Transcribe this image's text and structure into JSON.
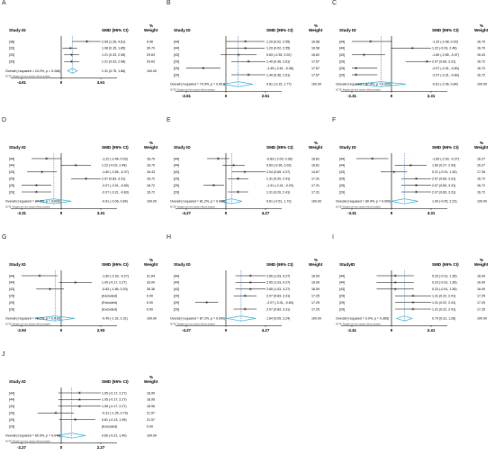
{
  "colors": {
    "diamond": "#3ab0d6",
    "line": "#000000",
    "dash": "#2f6fb0",
    "box": "#7a7a7a"
  },
  "common": {
    "study_header": "Study ID",
    "smd_header": "SMD (95% CI)",
    "weight_header": "Weight",
    "pct": "%",
    "note": "NOTE: Weights are from random effects analysis"
  },
  "chart_data": [
    {
      "type": "forest",
      "panel": "A",
      "study_header": "Study ID",
      "xlim": [
        -4.61,
        4.61
      ],
      "ticks": [
        "-4.61",
        "0",
        "4.61"
      ],
      "studies": [
        {
          "id": "[38]",
          "smd": 2.99,
          "lo": 1.26,
          "hi": 4.61,
          "ci": "2.99 (1.26, 4.61)",
          "weight": "9.96"
        },
        {
          "id": "[33]",
          "smd": 1.08,
          "lo": 0.15,
          "hi": 1.85,
          "ci": "1.08 (0.15, 1.85)",
          "weight": "30.70"
        },
        {
          "id": "[33]",
          "smd": 1.21,
          "lo": 0.33,
          "hi": 2.08,
          "ci": "1.21 (0.33, 2.08)",
          "weight": "29.63"
        },
        {
          "id": "[33]",
          "smd": 1.21,
          "lo": 0.33,
          "hi": 2.08,
          "ci": "1.21 (0.33, 2.08)",
          "weight": "29.63"
        }
      ],
      "overall": {
        "label": "Overall (I-squared = 24.2%, p = 0.266)",
        "smd": 1.31,
        "lo": 0.75,
        "hi": 1.88,
        "ci": "1.31 (0.75, 1.88)",
        "weight": "100.00"
      }
    },
    {
      "type": "forest",
      "panel": "B",
      "study_header": "Study ID",
      "xlim": [
        -2.61,
        2.61
      ],
      "ticks": [
        "-2.61",
        "0",
        "2.61"
      ],
      "studies": [
        {
          "id": "[44]",
          "smd": 1.29,
          "lo": 0.02,
          "hi": 2.55,
          "ci": "1.29 (0.02, 2.55)",
          "weight": "16.58"
        },
        {
          "id": "[44]",
          "smd": 1.29,
          "lo": 0.02,
          "hi": 2.55,
          "ci": "1.29 (0.02, 2.55)",
          "weight": "16.58"
        },
        {
          "id": "[43]",
          "smd": 0.83,
          "lo": -0.35,
          "hi": 2.02,
          "ci": "0.83 (-0.35, 2.02)",
          "weight": "16.62"
        },
        {
          "id": "[29]",
          "smd": 1.49,
          "lo": 0.36,
          "hi": 2.61,
          "ci": "1.49 (0.36, 2.61)",
          "weight": "17.57"
        },
        {
          "id": "[29]",
          "smd": -1.49,
          "lo": -2.61,
          "hi": -0.36,
          "ci": "-1.49 (-2.61, -0.36)",
          "weight": "17.57"
        },
        {
          "id": "[29]",
          "smd": 1.49,
          "lo": 0.36,
          "hi": 2.61,
          "ci": "1.49 (0.36, 2.61)",
          "weight": "17.57"
        }
      ],
      "overall": {
        "label": "Overall (I-squared = 74.9%, p = 0.001)",
        "smd": 0.81,
        "lo": -0.15,
        "hi": 1.77,
        "ci": "0.81 (-0.15, 1.77)",
        "weight": "100.00"
      }
    },
    {
      "type": "forest",
      "panel": "C",
      "study_header": "Study ID",
      "xlim": [
        -2.31,
        2.31
      ],
      "ticks": [
        "-2.31",
        "0",
        "2.31"
      ],
      "studies": [
        {
          "id": "[44]",
          "smd": -1.22,
          "lo": -2.48,
          "hi": 0.03,
          "ci": "-1.22 (-2.48, 0.03)",
          "weight": "16.70"
        },
        {
          "id": "[44]",
          "smd": 1.22,
          "lo": -0.03,
          "hi": 2.48,
          "ci": "1.22 (-0.03, 2.48)",
          "weight": "16.70"
        },
        {
          "id": "[43]",
          "smd": -1.6,
          "lo": -2.85,
          "hi": -0.37,
          "ci": "-1.60 (-2.85, -0.37)",
          "weight": "16.43"
        },
        {
          "id": "[29]",
          "smd": 2.07,
          "lo": 0.83,
          "hi": 3.31,
          "ci": "2.07 (0.83, 3.31)",
          "weight": "16.72"
        },
        {
          "id": "[29]",
          "smd": -2.07,
          "lo": -3.31,
          "hi": -0.83,
          "ci": "-2.07 (-3.31, -0.83)",
          "weight": "16.72"
        },
        {
          "id": "[29]",
          "smd": -2.07,
          "lo": -3.31,
          "hi": -0.83,
          "ci": "-2.07 (-3.31, -0.83)",
          "weight": "16.72"
        }
      ],
      "overall": {
        "label": "Overall (I-squared = 87.4%, p = 0.000)",
        "smd": -0.61,
        "lo": -2.06,
        "hi": 0.84,
        "ci": "-0.61 (-2.06, 0.84)",
        "weight": "100.00"
      }
    },
    {
      "type": "forest",
      "panel": "D",
      "study_header": "Study  ID",
      "xlim": [
        -3.31,
        3.31
      ],
      "ticks": [
        "-3.31",
        "0",
        "3.31"
      ],
      "studies": [
        {
          "id": "[44]",
          "smd": -1.22,
          "lo": -2.48,
          "hi": 0.03,
          "ci": "-1.22 (-2.48, 0.03)",
          "weight": "16.70"
        },
        {
          "id": "[44]",
          "smd": 1.22,
          "lo": -0.03,
          "hi": 2.48,
          "ci": "1.22 (-0.03, 2.48)",
          "weight": "16.70"
        },
        {
          "id": "[43]",
          "smd": -1.6,
          "lo": -2.85,
          "hi": -0.37,
          "ci": "-1.60 (-2.85, -0.37)",
          "weight": "16.43"
        },
        {
          "id": "[29]",
          "smd": 2.07,
          "lo": 0.83,
          "hi": 3.31,
          "ci": "2.07 (0.83, 3.31)",
          "weight": "16.72"
        },
        {
          "id": "[29]",
          "smd": -2.07,
          "lo": -3.31,
          "hi": -0.83,
          "ci": "-2.07 (-3.31, -0.83)",
          "weight": "16.72"
        },
        {
          "id": "[29]",
          "smd": -2.07,
          "lo": -3.31,
          "hi": -0.83,
          "ci": "-2.07 (-3.31, -0.83)",
          "weight": "16.72"
        }
      ],
      "overall": {
        "label": "Overall (I-squared = 87.4%, p = 0.000)",
        "smd": -0.61,
        "lo": -2.06,
        "hi": 0.84,
        "ci": "-0.61 (-2.06, 0.84)",
        "weight": "100.00"
      }
    },
    {
      "type": "forest",
      "panel": "E",
      "study_header": "Study  ID",
      "xlim": [
        -4.27,
        4.27
      ],
      "ticks": [
        "-4.27",
        "0",
        "4.27"
      ],
      "studies": [
        {
          "id": "[44]",
          "smd": -0.83,
          "lo": -2.03,
          "hi": 0.36,
          "ci": "-0.83 (-2.03, 0.36)",
          "weight": "16.81"
        },
        {
          "id": "[44]",
          "smd": 0.83,
          "lo": -0.36,
          "hi": 2.03,
          "ci": "0.83 (-0.36, 2.03)",
          "weight": "16.81"
        },
        {
          "id": "[43]",
          "smd": 2.04,
          "lo": 0.65,
          "hi": 4.27,
          "ci": "2.04 (0.65, 4.27)",
          "weight": "14.67"
        },
        {
          "id": "[29]",
          "smd": 1.31,
          "lo": 0.2,
          "hi": 2.41,
          "ci": "1.31 (0.20, 2.41)",
          "weight": "17.31"
        },
        {
          "id": "[29]",
          "smd": -1.31,
          "lo": -2.41,
          "hi": -0.2,
          "ci": "-1.31 (-2.41, -0.20)",
          "weight": "17.31"
        },
        {
          "id": "[29]",
          "smd": 1.31,
          "lo": 0.2,
          "hi": 2.41,
          "ci": "1.31 (0.20, 2.41)",
          "weight": "17.31"
        }
      ],
      "overall": {
        "label": "Overall (I-squared = 81.2%, p = 0.000)",
        "smd": 0.61,
        "lo": -0.51,
        "hi": 1.73,
        "ci": "0.61 (-0.51, 1.73)",
        "weight": "100.00"
      }
    },
    {
      "type": "forest",
      "panel": "F",
      "study_header": "Study  ID",
      "xlim": [
        -3.31,
        3.31
      ],
      "ticks": [
        "-3.31",
        "0",
        "3.31"
      ],
      "studies": [
        {
          "id": "[44]",
          "smd": -1.6,
          "lo": -2.93,
          "hi": -0.27,
          "ci": "-1.60 (-2.93, -0.27)",
          "weight": "16.27"
        },
        {
          "id": "[44]",
          "smd": 1.6,
          "lo": 0.27,
          "hi": 2.93,
          "ci": "1.60 (0.27, 2.93)",
          "weight": "16.27"
        },
        {
          "id": "[43]",
          "smd": 0.21,
          "lo": -0.91,
          "hi": 1.3,
          "ci": "0.21 (-0.91, 1.30)",
          "weight": "17.28"
        },
        {
          "id": "[29]",
          "smd": 2.07,
          "lo": 0.83,
          "hi": 3.31,
          "ci": "2.07 (0.83, 3.31)",
          "weight": "16.72"
        },
        {
          "id": "[29]",
          "smd": 2.07,
          "lo": 0.83,
          "hi": 3.31,
          "ci": "2.07 (0.83, 3.31)",
          "weight": "16.72"
        },
        {
          "id": "[29]",
          "smd": 2.07,
          "lo": 0.83,
          "hi": 3.31,
          "ci": "2.07 (0.83, 3.31)",
          "weight": "16.72"
        }
      ],
      "overall": {
        "label": "Overall (I-squared = 80.4%, p = 0.000)",
        "smd": 1.09,
        "lo": -0.05,
        "hi": 2.23,
        "ci": "1.09 (-0.05, 2.23)",
        "weight": "100.00"
      }
    },
    {
      "type": "forest",
      "panel": "G",
      "study_header": "Study  ID",
      "xlim": [
        -2.93,
        2.93
      ],
      "ticks": [
        "-2.93",
        "0",
        "2.93"
      ],
      "studies": [
        {
          "id": "[44]",
          "smd": -1.6,
          "lo": -2.93,
          "hi": -0.27,
          "ci": "-1.60 (-2.93, -0.27)",
          "weight": "31.64"
        },
        {
          "id": "[44]",
          "smd": 1.05,
          "lo": -0.17,
          "hi": 2.27,
          "ci": "1.05 (-0.17, 2.27)",
          "weight": "33.00"
        },
        {
          "id": "[43]",
          "smd": -0.83,
          "lo": -1.85,
          "hi": 0.2,
          "ci": "-0.83 (-1.85, 0.20)",
          "weight": "35.36"
        },
        {
          "id": "[29]",
          "smd": null,
          "ci": "(Excluded)",
          "weight": "0.00"
        },
        {
          "id": "[29]",
          "smd": null,
          "ci": "(Excluded)",
          "weight": "0.00"
        },
        {
          "id": "[29]",
          "smd": null,
          "ci": "(Excluded)",
          "weight": "0.00"
        }
      ],
      "overall": {
        "label": "Overall (I-squared = 78.1%, p = 0.010)",
        "smd": -0.45,
        "lo": -1.92,
        "hi": 1.01,
        "ci": "-0.45 (-1.92, 1.01)",
        "weight": "100.00"
      }
    },
    {
      "type": "forest",
      "panel": "H",
      "study_header": "Study  ID",
      "xlim": [
        -4.27,
        4.27
      ],
      "ticks": [
        "-4.27",
        "0",
        "4.27"
      ],
      "studies": [
        {
          "id": "[44]",
          "smd": 2.65,
          "lo": 1.03,
          "hi": 4.27,
          "ci": "2.65 (1.03, 4.27)",
          "weight": "16.09"
        },
        {
          "id": "[44]",
          "smd": 2.65,
          "lo": 1.03,
          "hi": 4.27,
          "ci": "2.65 (1.03, 4.27)",
          "weight": "16.09"
        },
        {
          "id": "[43]",
          "smd": 2.65,
          "lo": 1.03,
          "hi": 4.27,
          "ci": "2.65 (1.03, 4.27)",
          "weight": "16.09"
        },
        {
          "id": "[29]",
          "smd": 2.07,
          "lo": 0.83,
          "hi": 3.31,
          "ci": "2.07 (0.83, 3.31)",
          "weight": "17.25"
        },
        {
          "id": "[29]",
          "smd": -2.07,
          "lo": -3.31,
          "hi": -0.83,
          "ci": "-2.07 (-3.31, -0.83)",
          "weight": "17.25"
        },
        {
          "id": "[29]",
          "smd": 2.07,
          "lo": 0.83,
          "hi": 3.31,
          "ci": "2.07 (0.83, 3.31)",
          "weight": "17.25"
        }
      ],
      "overall": {
        "label": "Overall (I-squared = 87.2%, p = 0.000)",
        "smd": 1.64,
        "lo": 0.05,
        "hi": 3.24,
        "ci": "1.64 (0.05, 3.24)",
        "weight": "100.00"
      }
    },
    {
      "type": "forest",
      "panel": "I",
      "study_header": "StudyID",
      "xlim": [
        -2.41,
        2.41
      ],
      "ticks": [
        "-2.41",
        "0",
        "2.41"
      ],
      "studies": [
        {
          "id": "[44]",
          "smd": 0.23,
          "lo": -0.91,
          "hi": 1.36,
          "ci": "0.23 (-0.91, 1.36)",
          "weight": "16.09"
        },
        {
          "id": "[44]",
          "smd": 0.23,
          "lo": -0.91,
          "hi": 1.36,
          "ci": "0.23 (-0.91, 1.36)",
          "weight": "16.09"
        },
        {
          "id": "[43]",
          "smd": 0.23,
          "lo": -0.91,
          "hi": 1.36,
          "ci": "0.23 (-0.91, 1.36)",
          "weight": "16.09"
        },
        {
          "id": "[29]",
          "smd": 1.31,
          "lo": 0.22,
          "hi": 2.41,
          "ci": "1.31 (0.22, 2.41)",
          "weight": "17.25"
        },
        {
          "id": "[29]",
          "smd": 1.31,
          "lo": 0.22,
          "hi": 2.41,
          "ci": "1.31 (0.22, 2.41)",
          "weight": "17.25"
        },
        {
          "id": "[29]",
          "smd": 1.31,
          "lo": 0.22,
          "hi": 2.41,
          "ci": "1.31 (0.22, 2.41)",
          "weight": "17.25"
        }
      ],
      "overall": {
        "label": "Overall (I-squared = 0.0%, p = 0.365)",
        "smd": 0.79,
        "lo": 0.31,
        "hi": 1.26,
        "ci": "0.79 (0.31, 1.26)",
        "weight": "100.00"
      }
    },
    {
      "type": "forest",
      "panel": "J",
      "study_header": "Study  ID",
      "xlim": [
        -2.27,
        2.27
      ],
      "ticks": [
        "-2.27",
        "0",
        "2.27"
      ],
      "studies": [
        {
          "id": "[44]",
          "smd": 1.05,
          "lo": -0.17,
          "hi": 2.27,
          "ci": "1.05 (-0.17, 2.27)",
          "weight": "18.95"
        },
        {
          "id": "[44]",
          "smd": 1.05,
          "lo": -0.17,
          "hi": 2.27,
          "ci": "1.05 (-0.17, 2.27)",
          "weight": "18.95"
        },
        {
          "id": "[43]",
          "smd": 1.05,
          "lo": -0.17,
          "hi": 2.27,
          "ci": "1.05 (-0.17, 2.27)",
          "weight": "18.95"
        },
        {
          "id": "[29]",
          "smd": -0.31,
          "lo": -1.35,
          "hi": 0.73,
          "ci": "-0.31 (-1.35, 0.73)",
          "weight": "21.57"
        },
        {
          "id": "[29]",
          "smd": 0.81,
          "lo": -0.13,
          "hi": 1.95,
          "ci": "0.81 (-0.13, 1.95)",
          "weight": "21.57"
        },
        {
          "id": "[29]",
          "smd": null,
          "ci": "(Excluded)",
          "weight": "0.00"
        }
      ],
      "overall": {
        "label": "Overall (I-squared = 60.0%, p = 0.040)",
        "smd": 0.6,
        "lo": -0.21,
        "hi": 1.4,
        "ci": "0.60 (-0.21, 1.40)",
        "weight": "100.00"
      }
    }
  ]
}
